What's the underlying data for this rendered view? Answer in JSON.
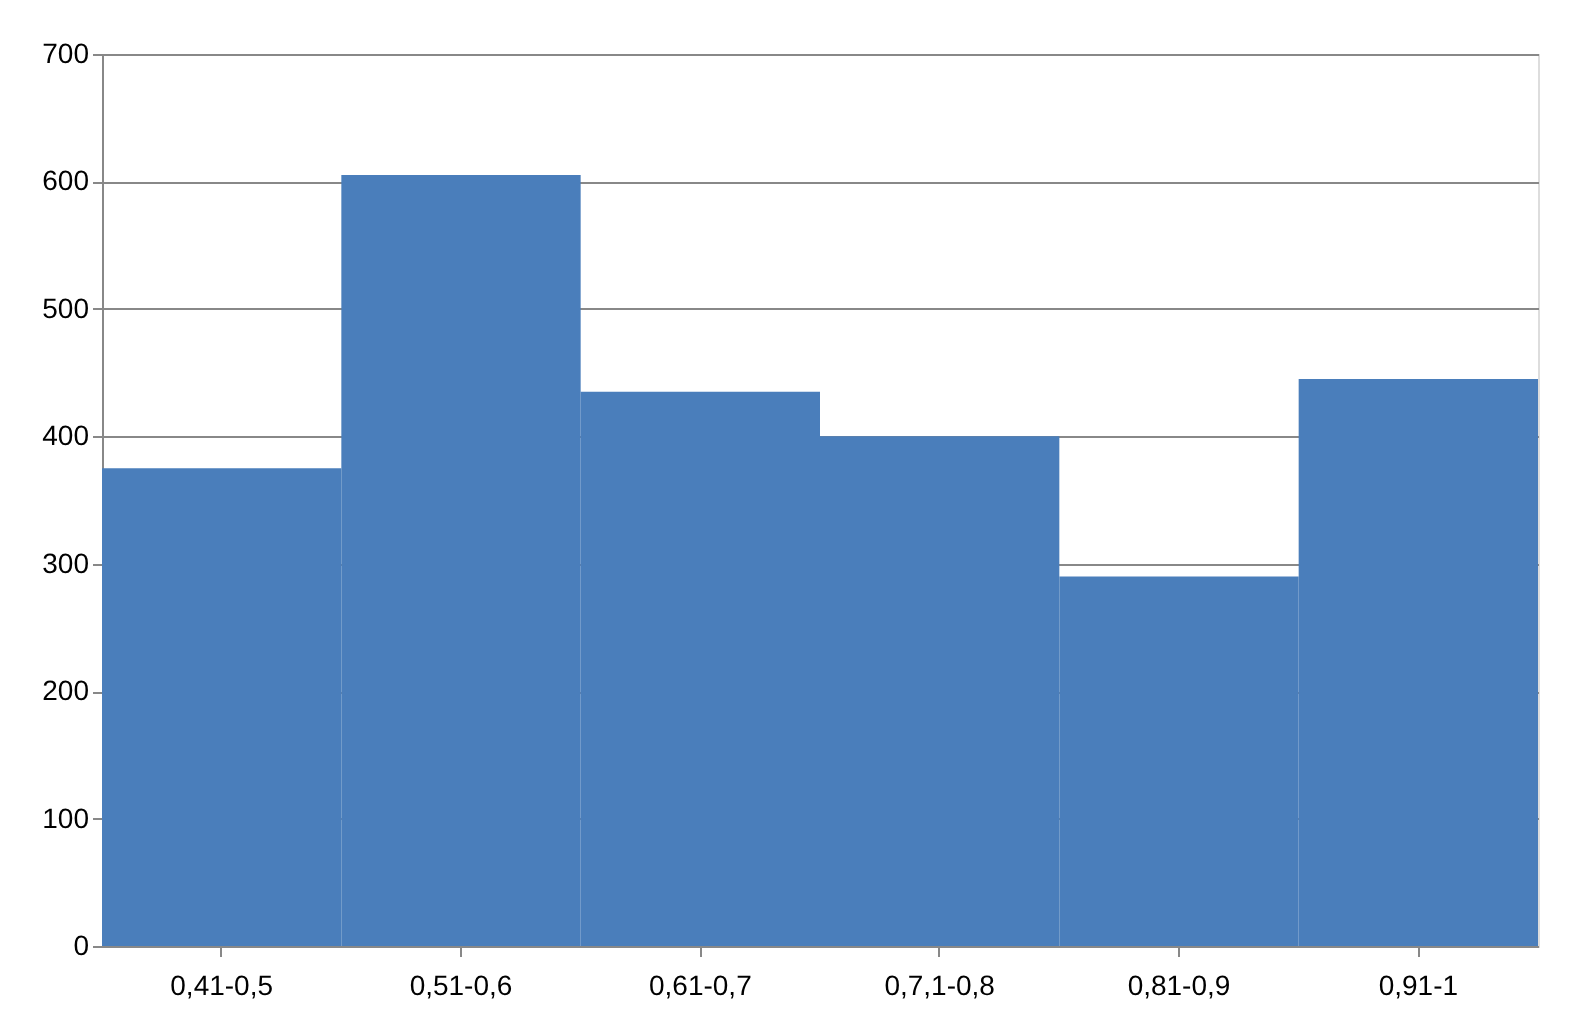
{
  "chart_data": {
    "type": "bar",
    "categories": [
      "0,41-0,5",
      "0,51-0,6",
      "0,61-0,7",
      "0,7,1-0,8",
      "0,81-0,9",
      "0,91-1"
    ],
    "values": [
      375,
      605,
      435,
      400,
      290,
      445
    ],
    "color": "#4a7ebb",
    "ylim": [
      0,
      700
    ],
    "yticks": [
      0,
      100,
      200,
      300,
      400,
      500,
      600,
      700
    ],
    "grid": "y"
  }
}
